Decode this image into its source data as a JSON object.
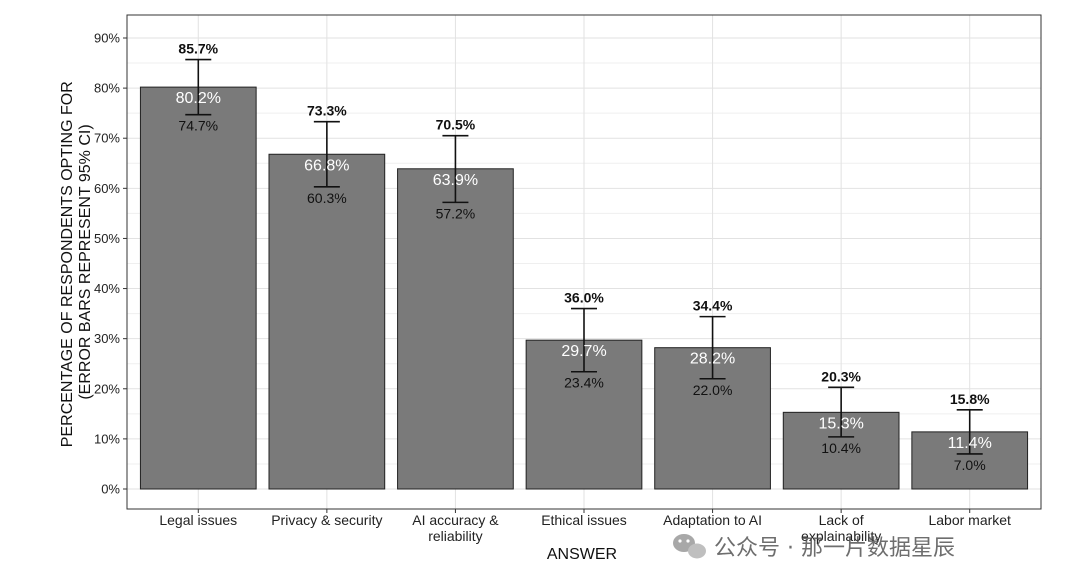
{
  "chart_data": {
    "type": "bar",
    "categories": [
      [
        "Legal issues"
      ],
      [
        "Privacy & security"
      ],
      [
        "AI accuracy &",
        "reliability"
      ],
      [
        "Ethical issues"
      ],
      [
        "Adaptation to AI"
      ],
      [
        "Lack of",
        "explainability"
      ],
      [
        "Labor market"
      ]
    ],
    "values": [
      80.2,
      66.8,
      63.9,
      29.7,
      28.2,
      15.3,
      11.4
    ],
    "value_labels": [
      "80.2%",
      "66.8%",
      "63.9%",
      "29.7%",
      "28.2%",
      "15.3%",
      "11.4%"
    ],
    "ci_upper": [
      85.7,
      73.3,
      70.5,
      36.0,
      34.4,
      20.3,
      15.8
    ],
    "ci_upper_labels": [
      "85.7%",
      "73.3%",
      "70.5%",
      "36.0%",
      "34.4%",
      "20.3%",
      "15.8%"
    ],
    "ci_lower": [
      74.7,
      60.3,
      57.2,
      23.4,
      22.0,
      10.4,
      7.0
    ],
    "ci_lower_labels": [
      "74.7%",
      "60.3%",
      "57.2%",
      "23.4%",
      "22.0%",
      "10.4%",
      "7.0%"
    ],
    "ylim": [
      0,
      95
    ],
    "yticks": [
      0,
      10,
      20,
      30,
      40,
      50,
      60,
      70,
      80,
      90
    ],
    "ytick_labels": [
      "0%",
      "10%",
      "20%",
      "30%",
      "40%",
      "50%",
      "60%",
      "70%",
      "80%",
      "90%"
    ],
    "xlabel": "ANSWER",
    "ylabel_lines": [
      "PERCENTAGE OF RESPONDENTS OPTING FOR",
      "(ERROR BARS REPRESENT 95% CI)"
    ],
    "grid": true,
    "colors": {
      "bar": "#7a7a7a",
      "bar_stroke": "#222222",
      "grid": "#e2e2e2",
      "error_bar": "#111111"
    }
  },
  "watermark": {
    "text": "公众号 · 那一片数据星辰",
    "icon": "wechat-icon"
  }
}
